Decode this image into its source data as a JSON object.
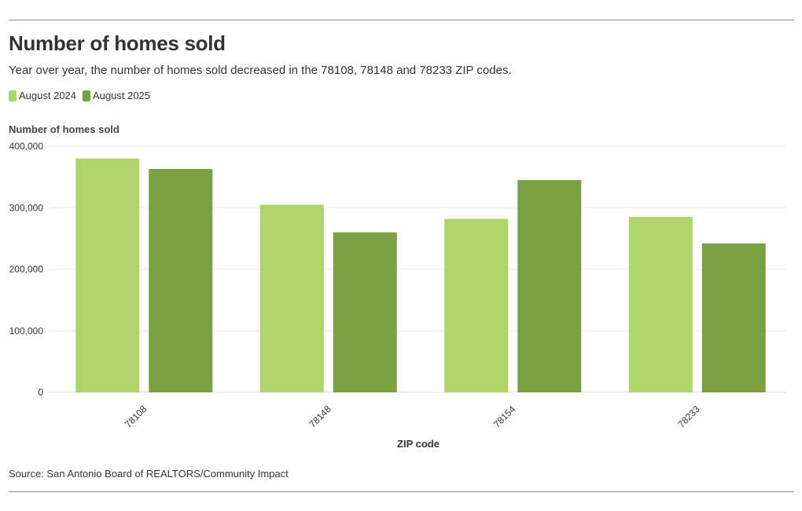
{
  "header": {
    "title": "Number of homes sold",
    "subtitle": "Year over year, the number of homes sold decreased in the 78108, 78148 and 78233 ZIP codes."
  },
  "legend": {
    "items": [
      {
        "label": "August 2024",
        "color": "#aed46a"
      },
      {
        "label": "August 2025",
        "color": "#79a142"
      }
    ]
  },
  "footer": {
    "source": "Source: San Antonio Board of REALTORS/Community Impact"
  },
  "chart_data": {
    "type": "bar",
    "title": "Number of homes sold",
    "xlabel": "ZIP code",
    "ylabel": "Number of homes sold",
    "categories": [
      "78108",
      "78148",
      "78154",
      "78233"
    ],
    "series": [
      {
        "name": "August 2024",
        "color": "#aed46a",
        "values": [
          380000,
          305000,
          282000,
          285000
        ]
      },
      {
        "name": "August 2025",
        "color": "#79a142",
        "values": [
          363000,
          260000,
          345000,
          242000
        ]
      }
    ],
    "ylim": [
      0,
      400000
    ],
    "yticks": [
      0,
      100000,
      200000,
      300000,
      400000
    ],
    "ytick_labels": [
      "0",
      "100,000",
      "200,000",
      "300,000",
      "400,000"
    ],
    "grid": true,
    "legend_position": "top-left"
  }
}
